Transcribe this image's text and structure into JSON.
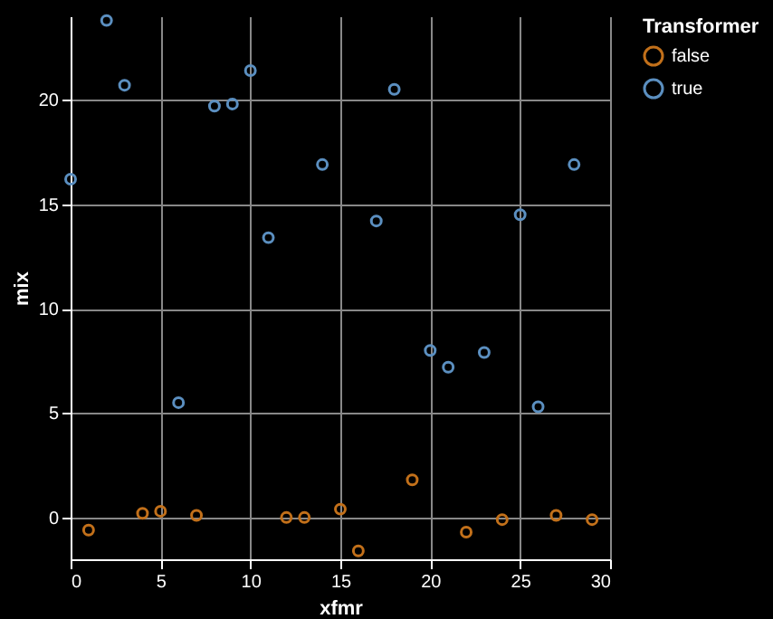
{
  "chart_data": {
    "type": "scatter",
    "xlabel": "xfmr",
    "ylabel": "mix",
    "legend_title": "Transformer",
    "legend": "top right",
    "grid": true,
    "marker": "circle",
    "xlim": [
      0,
      30
    ],
    "xticks": [
      0,
      5,
      10,
      15,
      20,
      25,
      30
    ],
    "ylim": [
      -2,
      24
    ],
    "yticks": [
      0,
      5,
      10,
      15,
      20
    ],
    "series": [
      {
        "name": "false",
        "color": "#c2701a",
        "x": [
          1,
          4,
          5,
          7,
          12,
          13,
          15,
          16,
          19,
          22,
          24,
          27,
          29
        ],
        "values": [
          -0.6,
          0.2,
          0.3,
          0.1,
          0,
          0,
          0.4,
          -1.6,
          1.8,
          -0.7,
          -0.1,
          0.1,
          -0.1
        ]
      },
      {
        "name": "true",
        "color": "#5b8fc0",
        "x": [
          0,
          2,
          3,
          6,
          8,
          9,
          10,
          11,
          14,
          17,
          18,
          20,
          21,
          23,
          25,
          26,
          28
        ],
        "values": [
          16.2,
          23.8,
          20.7,
          5.5,
          19.7,
          19.8,
          21.4,
          13.4,
          16.9,
          14.2,
          20.5,
          8.0,
          7.2,
          7.9,
          14.5,
          5.3,
          16.9
        ]
      }
    ]
  }
}
